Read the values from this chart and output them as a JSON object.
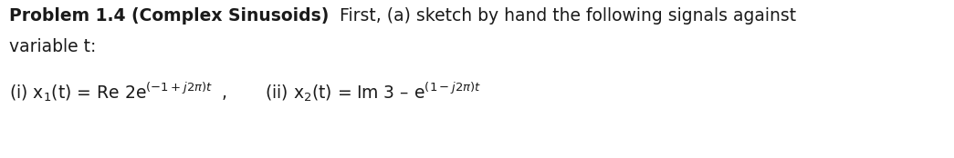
{
  "background_color": "#ffffff",
  "fig_width": 10.45,
  "fig_height": 1.74,
  "dpi": 100,
  "bold_text": "Problem 1.4 (Complex Sinusoids)",
  "normal_text": "  First, (a) sketch by hand the following signals against",
  "line2": "variable t:",
  "eq1": "(i) x$_1$(t) = Re 2e$^{(-1+j2\\pi)t}$  ,",
  "eq2": "(ii) x$_2$(t) = Im 3 – e$^{(1-j2\\pi)t}$",
  "font_size": 13.5,
  "text_color": "#1a1a1a"
}
